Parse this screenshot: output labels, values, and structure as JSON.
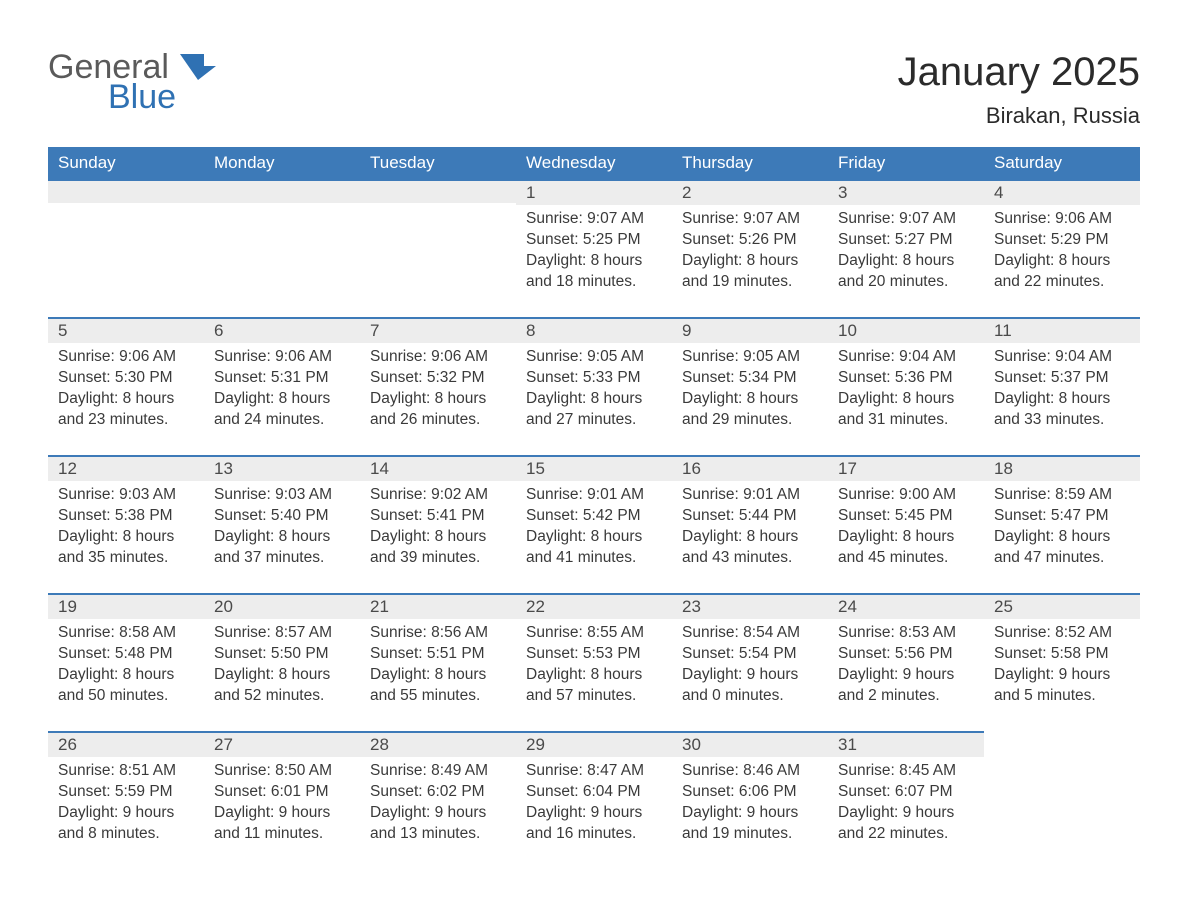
{
  "logo": {
    "general": "General",
    "blue": "Blue",
    "accent_color": "#2f71b3"
  },
  "title": "January 2025",
  "location": "Birakan, Russia",
  "header_bg": "#3d7ab8",
  "header_text_color": "#ffffff",
  "daynum_bg": "#ededed",
  "border_color": "#3d7ab8",
  "weekdays": [
    "Sunday",
    "Monday",
    "Tuesday",
    "Wednesday",
    "Thursday",
    "Friday",
    "Saturday"
  ],
  "weeks": [
    [
      null,
      null,
      null,
      {
        "n": "1",
        "sr": "9:07 AM",
        "ss": "5:25 PM",
        "dlh": "8",
        "dlm": "18"
      },
      {
        "n": "2",
        "sr": "9:07 AM",
        "ss": "5:26 PM",
        "dlh": "8",
        "dlm": "19"
      },
      {
        "n": "3",
        "sr": "9:07 AM",
        "ss": "5:27 PM",
        "dlh": "8",
        "dlm": "20"
      },
      {
        "n": "4",
        "sr": "9:06 AM",
        "ss": "5:29 PM",
        "dlh": "8",
        "dlm": "22"
      }
    ],
    [
      {
        "n": "5",
        "sr": "9:06 AM",
        "ss": "5:30 PM",
        "dlh": "8",
        "dlm": "23"
      },
      {
        "n": "6",
        "sr": "9:06 AM",
        "ss": "5:31 PM",
        "dlh": "8",
        "dlm": "24"
      },
      {
        "n": "7",
        "sr": "9:06 AM",
        "ss": "5:32 PM",
        "dlh": "8",
        "dlm": "26"
      },
      {
        "n": "8",
        "sr": "9:05 AM",
        "ss": "5:33 PM",
        "dlh": "8",
        "dlm": "27"
      },
      {
        "n": "9",
        "sr": "9:05 AM",
        "ss": "5:34 PM",
        "dlh": "8",
        "dlm": "29"
      },
      {
        "n": "10",
        "sr": "9:04 AM",
        "ss": "5:36 PM",
        "dlh": "8",
        "dlm": "31"
      },
      {
        "n": "11",
        "sr": "9:04 AM",
        "ss": "5:37 PM",
        "dlh": "8",
        "dlm": "33"
      }
    ],
    [
      {
        "n": "12",
        "sr": "9:03 AM",
        "ss": "5:38 PM",
        "dlh": "8",
        "dlm": "35"
      },
      {
        "n": "13",
        "sr": "9:03 AM",
        "ss": "5:40 PM",
        "dlh": "8",
        "dlm": "37"
      },
      {
        "n": "14",
        "sr": "9:02 AM",
        "ss": "5:41 PM",
        "dlh": "8",
        "dlm": "39"
      },
      {
        "n": "15",
        "sr": "9:01 AM",
        "ss": "5:42 PM",
        "dlh": "8",
        "dlm": "41"
      },
      {
        "n": "16",
        "sr": "9:01 AM",
        "ss": "5:44 PM",
        "dlh": "8",
        "dlm": "43"
      },
      {
        "n": "17",
        "sr": "9:00 AM",
        "ss": "5:45 PM",
        "dlh": "8",
        "dlm": "45"
      },
      {
        "n": "18",
        "sr": "8:59 AM",
        "ss": "5:47 PM",
        "dlh": "8",
        "dlm": "47"
      }
    ],
    [
      {
        "n": "19",
        "sr": "8:58 AM",
        "ss": "5:48 PM",
        "dlh": "8",
        "dlm": "50"
      },
      {
        "n": "20",
        "sr": "8:57 AM",
        "ss": "5:50 PM",
        "dlh": "8",
        "dlm": "52"
      },
      {
        "n": "21",
        "sr": "8:56 AM",
        "ss": "5:51 PM",
        "dlh": "8",
        "dlm": "55"
      },
      {
        "n": "22",
        "sr": "8:55 AM",
        "ss": "5:53 PM",
        "dlh": "8",
        "dlm": "57"
      },
      {
        "n": "23",
        "sr": "8:54 AM",
        "ss": "5:54 PM",
        "dlh": "9",
        "dlm": "0"
      },
      {
        "n": "24",
        "sr": "8:53 AM",
        "ss": "5:56 PM",
        "dlh": "9",
        "dlm": "2"
      },
      {
        "n": "25",
        "sr": "8:52 AM",
        "ss": "5:58 PM",
        "dlh": "9",
        "dlm": "5"
      }
    ],
    [
      {
        "n": "26",
        "sr": "8:51 AM",
        "ss": "5:59 PM",
        "dlh": "9",
        "dlm": "8"
      },
      {
        "n": "27",
        "sr": "8:50 AM",
        "ss": "6:01 PM",
        "dlh": "9",
        "dlm": "11"
      },
      {
        "n": "28",
        "sr": "8:49 AM",
        "ss": "6:02 PM",
        "dlh": "9",
        "dlm": "13"
      },
      {
        "n": "29",
        "sr": "8:47 AM",
        "ss": "6:04 PM",
        "dlh": "9",
        "dlm": "16"
      },
      {
        "n": "30",
        "sr": "8:46 AM",
        "ss": "6:06 PM",
        "dlh": "9",
        "dlm": "19"
      },
      {
        "n": "31",
        "sr": "8:45 AM",
        "ss": "6:07 PM",
        "dlh": "9",
        "dlm": "22"
      },
      null
    ]
  ],
  "labels": {
    "sunrise": "Sunrise: ",
    "sunset": "Sunset: ",
    "daylight_prefix": "Daylight: ",
    "hours_word": " hours",
    "and_word": "and ",
    "minutes_word": " minutes."
  }
}
